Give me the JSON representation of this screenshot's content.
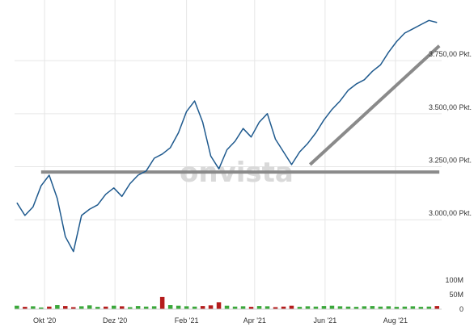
{
  "chart_data": {
    "type": "line",
    "watermark": "onvista",
    "colors": {
      "line": "#1f5a8e",
      "trendline": "#8a8a8a",
      "grid": "#e6e6e6",
      "volume_up": "#3aa83a",
      "volume_down": "#b51c1c"
    },
    "x_tick_labels": [
      "Okt '20",
      "Dez '20",
      "Feb '21",
      "Apr '21",
      "Jun '21",
      "Aug '21"
    ],
    "y_tick_labels": [
      "3.000,00 Pkt.",
      "3.250,00 Pkt.",
      "3.500,00 Pkt.",
      "3.750,00 Pkt."
    ],
    "volume_tick_labels": [
      "100M",
      "50M",
      "0"
    ],
    "ylim": [
      2780,
      3960
    ],
    "volume_ylim": [
      0,
      120
    ],
    "x_ticks": [
      "2020-10-01",
      "2020-12-01",
      "2021-02-01",
      "2021-04-01",
      "2021-06-01",
      "2021-08-01"
    ],
    "y_ticks": [
      3000,
      3250,
      3500,
      3750
    ],
    "volume_ticks": [
      100,
      50,
      0
    ],
    "series": [
      {
        "x": [
          "2020-09-07",
          "2020-09-14",
          "2020-09-21",
          "2020-09-28",
          "2020-10-05",
          "2020-10-12",
          "2020-10-19",
          "2020-10-26",
          "2020-11-02",
          "2020-11-09",
          "2020-11-16",
          "2020-11-23",
          "2020-11-30",
          "2020-12-07",
          "2020-12-14",
          "2020-12-21",
          "2020-12-28",
          "2021-01-04",
          "2021-01-11",
          "2021-01-18",
          "2021-01-25",
          "2021-02-01",
          "2021-02-08",
          "2021-02-15",
          "2021-02-22",
          "2021-03-01",
          "2021-03-08",
          "2021-03-15",
          "2021-03-22",
          "2021-03-29",
          "2021-04-05",
          "2021-04-12",
          "2021-04-19",
          "2021-04-26",
          "2021-05-03",
          "2021-05-10",
          "2021-05-17",
          "2021-05-24",
          "2021-05-31",
          "2021-06-07",
          "2021-06-14",
          "2021-06-21",
          "2021-06-28",
          "2021-07-05",
          "2021-07-12",
          "2021-07-19",
          "2021-07-26",
          "2021-08-02",
          "2021-08-09",
          "2021-08-16",
          "2021-08-23",
          "2021-08-30",
          "2021-09-06"
        ],
        "values": [
          3080,
          3020,
          3060,
          3160,
          3210,
          3100,
          2920,
          2850,
          3020,
          3050,
          3070,
          3120,
          3150,
          3110,
          3170,
          3210,
          3230,
          3290,
          3310,
          3340,
          3410,
          3510,
          3560,
          3460,
          3300,
          3240,
          3330,
          3370,
          3430,
          3390,
          3460,
          3500,
          3380,
          3320,
          3260,
          3320,
          3360,
          3410,
          3470,
          3520,
          3560,
          3610,
          3640,
          3660,
          3700,
          3730,
          3790,
          3840,
          3880,
          3900,
          3920,
          3940,
          3930
        ]
      }
    ],
    "volume": {
      "values": [
        12,
        8,
        10,
        6,
        9,
        14,
        11,
        7,
        10,
        13,
        8,
        9,
        12,
        10,
        7,
        11,
        9,
        10,
        42,
        14,
        12,
        10,
        9,
        11,
        13,
        24,
        12,
        9,
        10,
        8,
        11,
        10,
        7,
        9,
        12,
        8,
        10,
        9,
        11,
        12,
        10,
        9,
        8,
        10,
        11,
        9,
        10,
        8,
        9,
        10,
        8,
        9,
        11
      ],
      "up": [
        true,
        false,
        true,
        true,
        false,
        true,
        false,
        false,
        true,
        true,
        true,
        false,
        true,
        false,
        true,
        true,
        true,
        true,
        false,
        true,
        true,
        true,
        true,
        false,
        false,
        false,
        true,
        true,
        true,
        false,
        true,
        true,
        false,
        false,
        false,
        true,
        true,
        true,
        true,
        true,
        true,
        true,
        true,
        true,
        true,
        true,
        true,
        true,
        true,
        true,
        true,
        true,
        false
      ]
    },
    "trendlines": [
      {
        "x": [
          "2020-09-28",
          "2021-09-08"
        ],
        "y": [
          3225,
          3225
        ]
      },
      {
        "x": [
          "2021-05-19",
          "2021-09-08"
        ],
        "y": [
          3260,
          3820
        ]
      }
    ]
  }
}
